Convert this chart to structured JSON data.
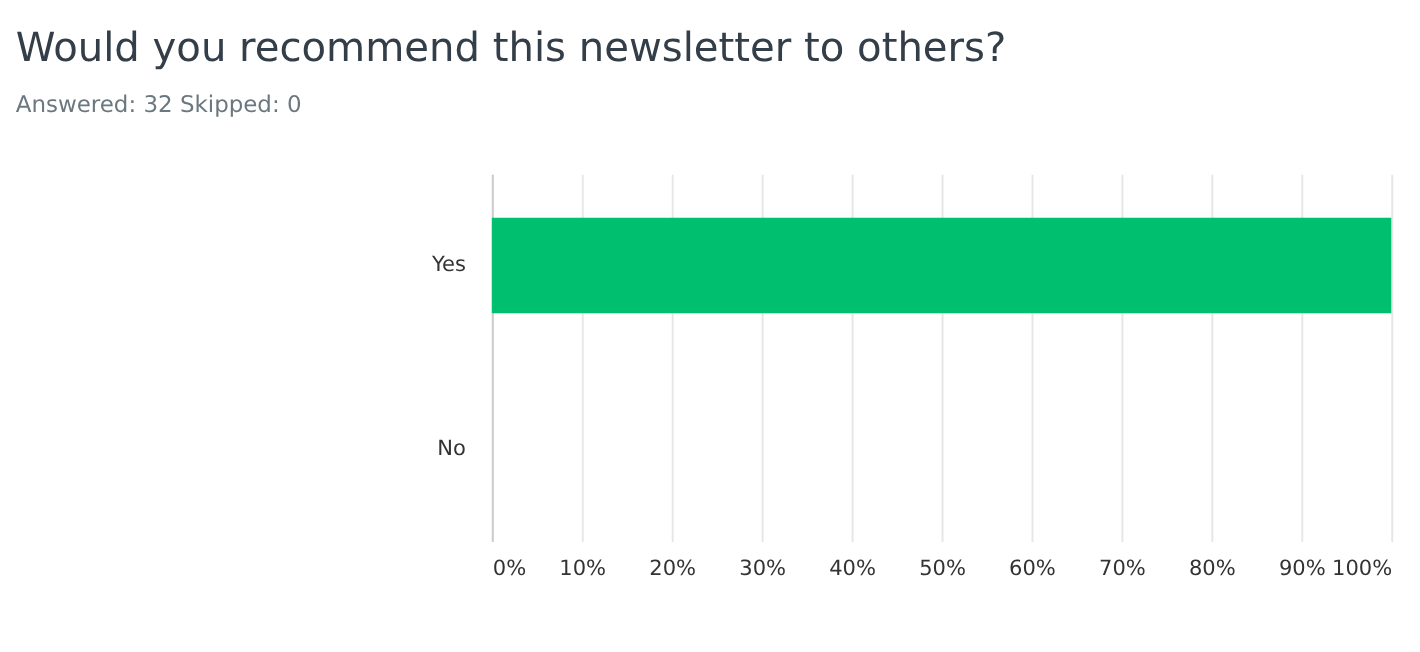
{
  "chart_data": {
    "type": "bar",
    "orientation": "horizontal",
    "title": "Would you recommend this newsletter to others?",
    "subtitle": "Answered: 32     Skipped: 0",
    "categories": [
      "Yes",
      "No"
    ],
    "series": [
      {
        "color": "#00bf6f",
        "values": [
          100,
          0
        ]
      }
    ],
    "xlim": [
      0,
      100
    ],
    "xticks": [
      {
        "value": 0,
        "label": "0%"
      },
      {
        "value": 10,
        "label": "10%"
      },
      {
        "value": 20,
        "label": "20%"
      },
      {
        "value": 30,
        "label": "30%"
      },
      {
        "value": 40,
        "label": "40%"
      },
      {
        "value": 50,
        "label": "50%"
      },
      {
        "value": 60,
        "label": "60%"
      },
      {
        "value": 70,
        "label": "70%"
      },
      {
        "value": 80,
        "label": "80%"
      },
      {
        "value": 90,
        "label": "90%"
      },
      {
        "value": 100,
        "label": "100%"
      }
    ],
    "grid": "x",
    "legend": false
  }
}
